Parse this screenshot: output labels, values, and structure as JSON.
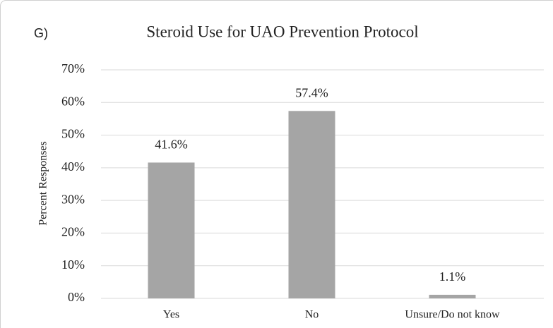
{
  "chart_data": {
    "type": "bar",
    "panel_label": "G)",
    "title": "Steroid Use for UAO Prevention Protocol",
    "y_label": "Percent Responses",
    "categories": [
      "Yes",
      "No",
      "Unsure/Do not know"
    ],
    "values": [
      41.6,
      57.4,
      1.1
    ],
    "value_labels": [
      "41.6%",
      "57.4%",
      "1.1%"
    ],
    "color": "#a5a5a5",
    "ylim": [
      0,
      70
    ],
    "yticks": [
      {
        "value": 0,
        "label": "0%"
      },
      {
        "value": 10,
        "label": "10%"
      },
      {
        "value": 20,
        "label": "20%"
      },
      {
        "value": 30,
        "label": "30%"
      },
      {
        "value": 40,
        "label": "40%"
      },
      {
        "value": 50,
        "label": "50%"
      },
      {
        "value": 60,
        "label": "60%"
      },
      {
        "value": 70,
        "label": "70%"
      }
    ],
    "grid": true
  }
}
